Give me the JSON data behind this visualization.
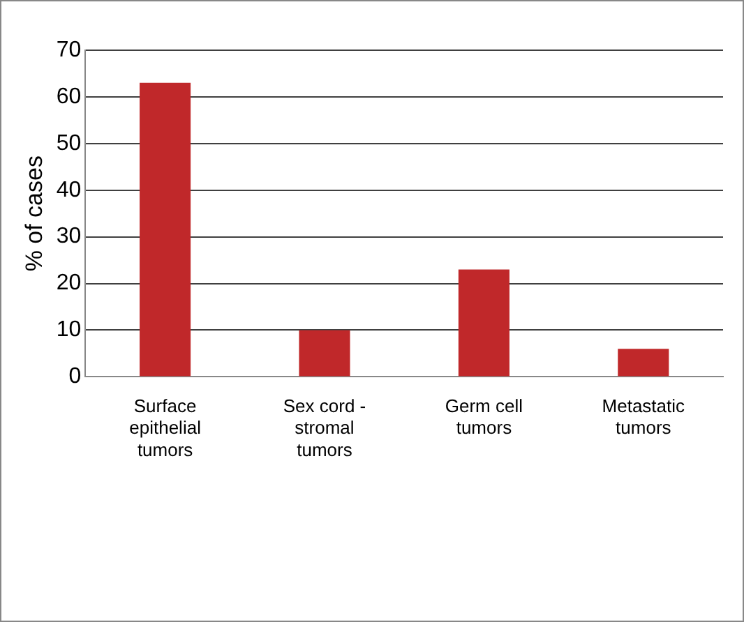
{
  "chart_data": {
    "type": "bar",
    "ylabel": "% of cases",
    "categories": [
      "Surface epithelial tumors",
      "Sex cord - stromal tumors",
      "Germ cell tumors",
      "Metastatic tumors"
    ],
    "values": [
      63,
      10,
      23,
      6
    ],
    "color": "#c0282a",
    "ylim": [
      0,
      70
    ],
    "yticks": [
      0,
      10,
      20,
      30,
      40,
      50,
      60,
      70
    ],
    "grid": "y",
    "legend": false
  }
}
